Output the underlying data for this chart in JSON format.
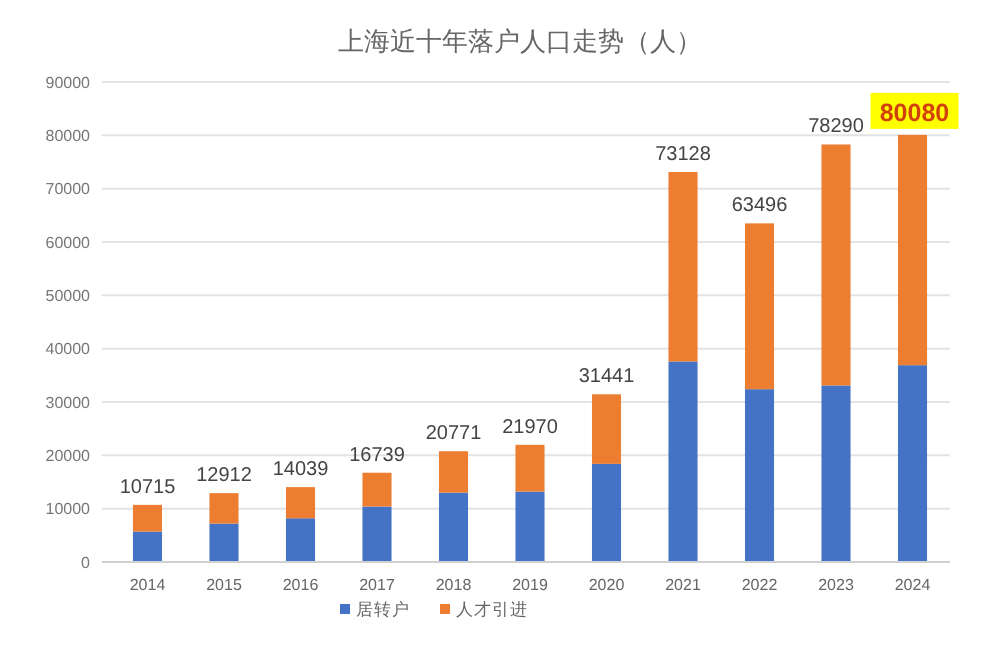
{
  "chart_data": {
    "type": "bar",
    "title": "上海近十年落户人口走势（人）",
    "categories": [
      "2014",
      "2015",
      "2016",
      "2017",
      "2018",
      "2019",
      "2020",
      "2021",
      "2022",
      "2023",
      "2024"
    ],
    "stacked": true,
    "series": [
      {
        "name": "居转户",
        "color": "#4472c4",
        "values": [
          5700,
          7200,
          8200,
          10400,
          13000,
          13200,
          18400,
          37600,
          32400,
          33100,
          36900
        ]
      },
      {
        "name": "人才引进",
        "color": "#ed7d31",
        "values": [
          5015,
          5712,
          5839,
          6339,
          7771,
          8770,
          13041,
          35528,
          31096,
          45190,
          43180
        ]
      }
    ],
    "totals": [
      "10715",
      "12912",
      "14039",
      "16739",
      "20771",
      "21970",
      "31441",
      "73128",
      "63496",
      "78290",
      "80080"
    ],
    "ylim": [
      0,
      90000
    ],
    "yticks": [
      0,
      10000,
      20000,
      30000,
      40000,
      50000,
      60000,
      70000,
      80000,
      90000
    ],
    "grid": "y",
    "legend": "bottom"
  }
}
